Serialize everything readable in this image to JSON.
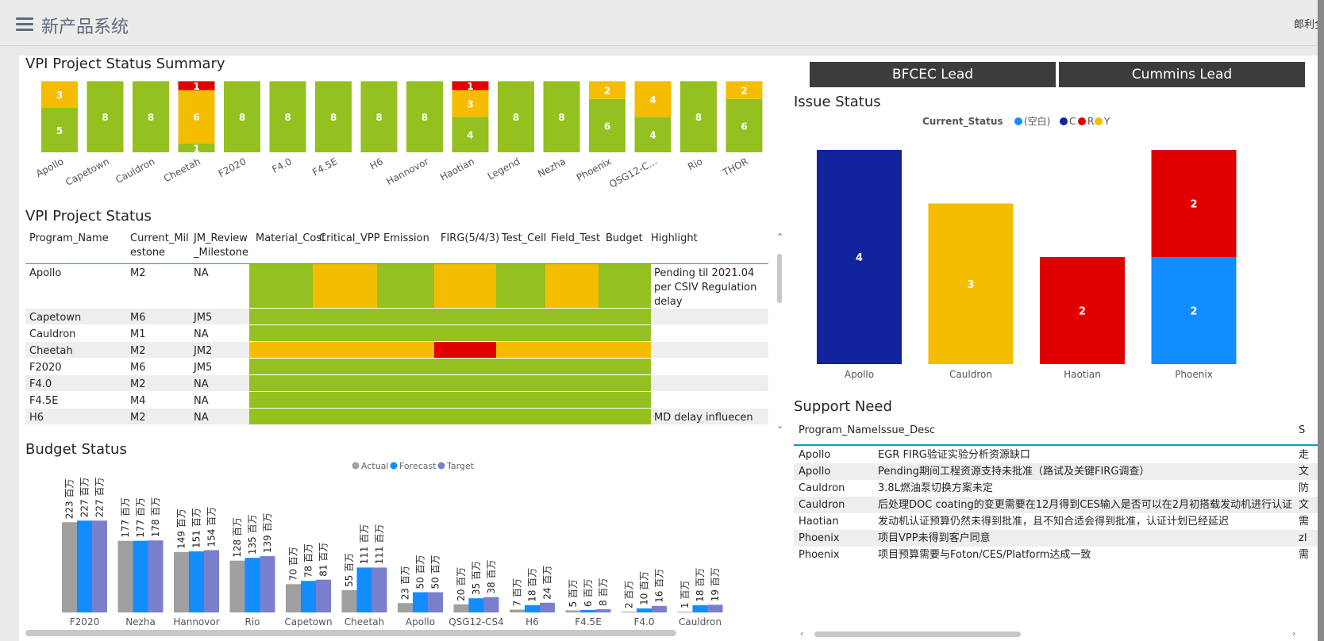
{
  "app": {
    "title": "新产品系统",
    "user": "郎利全"
  },
  "summary": {
    "title": "VPI Project Status Summary",
    "chart_data": {
      "type": "bar",
      "stacked": true,
      "categories": [
        "Apollo",
        "Capetown",
        "Cauldron",
        "Cheetah",
        "F2020",
        "F4.0",
        "F4.5E",
        "H6",
        "Hannovor",
        "Haotian",
        "Legend",
        "Nezha",
        "Phoenix",
        "QSG12-C...",
        "Rio",
        "THOR"
      ],
      "series": [
        {
          "color": "#94c11f",
          "values": [
            5,
            8,
            8,
            1,
            8,
            8,
            8,
            8,
            8,
            4,
            8,
            8,
            6,
            4,
            8,
            6
          ]
        },
        {
          "color": "#f4bd00",
          "values": [
            3,
            0,
            0,
            6,
            0,
            0,
            0,
            0,
            0,
            3,
            0,
            0,
            2,
            4,
            0,
            2
          ]
        },
        {
          "color": "#e00000",
          "values": [
            0,
            0,
            0,
            1,
            0,
            0,
            0,
            0,
            0,
            1,
            0,
            0,
            0,
            0,
            0,
            0
          ]
        }
      ]
    }
  },
  "vpi": {
    "title": "VPI Project Status",
    "headers": [
      "Program_Name",
      "Current_Mil\nestone",
      "JM_Review\n_Milestone",
      "Material_Cost",
      "Critical_VPP",
      "Emission",
      "FIRG(5/4/3)",
      "Test_Cell",
      "Field_Test",
      "Budget",
      "Highlight"
    ],
    "rows": [
      {
        "name": "Apollo",
        "cm": "M2",
        "jm": "NA",
        "st": [
          "G",
          "Y",
          "G",
          "Y",
          "G",
          "Y",
          "G"
        ],
        "hl": "Pending til 2021.04\nper CSIV Regulation\ndelay"
      },
      {
        "name": "Capetown",
        "cm": "M6",
        "jm": "JM5",
        "st": [
          "G",
          "G",
          "G",
          "G",
          "G",
          "G",
          "G"
        ],
        "hl": ""
      },
      {
        "name": "Cauldron",
        "cm": "M1",
        "jm": "NA",
        "st": [
          "G",
          "G",
          "G",
          "G",
          "G",
          "G",
          "G"
        ],
        "hl": ""
      },
      {
        "name": "Cheetah",
        "cm": "M2",
        "jm": "JM2",
        "st": [
          "Y",
          "Y",
          "Y",
          "R",
          "Y",
          "Y",
          "Y"
        ],
        "hl": ""
      },
      {
        "name": "F2020",
        "cm": "M6",
        "jm": "JM5",
        "st": [
          "G",
          "G",
          "G",
          "G",
          "G",
          "G",
          "G"
        ],
        "hl": ""
      },
      {
        "name": "F4.0",
        "cm": "M2",
        "jm": "NA",
        "st": [
          "G",
          "G",
          "G",
          "G",
          "G",
          "G",
          "G"
        ],
        "hl": ""
      },
      {
        "name": "F4.5E",
        "cm": "M4",
        "jm": "NA",
        "st": [
          "G",
          "G",
          "G",
          "G",
          "G",
          "G",
          "G"
        ],
        "hl": ""
      },
      {
        "name": "H6",
        "cm": "M2",
        "jm": "NA",
        "st": [
          "G",
          "G",
          "G",
          "G",
          "G",
          "G",
          "G"
        ],
        "hl": "MD delay influecen"
      }
    ]
  },
  "budget": {
    "title": "Budget Status",
    "chart_data": {
      "type": "bar",
      "unit": "百万",
      "legend": [
        "Actual",
        "Forecast",
        "Target"
      ],
      "colors": [
        "#a0a0a0",
        "#118dff",
        "#7a7fcc"
      ],
      "categories": [
        "F2020",
        "Nezha",
        "Hannovor",
        "Rio",
        "Capetown",
        "Cheetah",
        "Apollo",
        "QSG12-CS4",
        "H6",
        "F4.5E",
        "F4.0",
        "Cauldron"
      ],
      "series": [
        {
          "name": "Actual",
          "values": [
            223,
            177,
            149,
            128,
            70,
            55,
            23,
            20,
            7,
            5,
            2,
            1
          ]
        },
        {
          "name": "Forecast",
          "values": [
            227,
            177,
            151,
            135,
            78,
            111,
            50,
            35,
            18,
            6,
            10,
            18
          ]
        },
        {
          "name": "Target",
          "values": [
            227,
            178,
            154,
            139,
            81,
            111,
            50,
            38,
            24,
            8,
            16,
            19
          ]
        }
      ]
    }
  },
  "buttons": {
    "bfcec": "BFCEC Lead",
    "cummins": "Cummins Lead"
  },
  "issue": {
    "title": "Issue Status",
    "chart_data": {
      "type": "bar",
      "stacked": true,
      "legend_title": "Current_Status",
      "legend": [
        {
          "label": "(空白)",
          "color": "#118dff"
        },
        {
          "label": "C",
          "color": "#12239e"
        },
        {
          "label": "R",
          "color": "#e00000"
        },
        {
          "label": "Y",
          "color": "#f4bd00"
        }
      ],
      "categories": [
        "Apollo",
        "Cauldron",
        "Haotian",
        "Phoenix"
      ],
      "stacks": [
        [
          {
            "status": "C",
            "value": 4
          }
        ],
        [
          {
            "status": "Y",
            "value": 3
          }
        ],
        [
          {
            "status": "R",
            "value": 2
          }
        ],
        [
          {
            "status": "(空白)",
            "value": 2
          },
          {
            "status": "R",
            "value": 2
          }
        ]
      ]
    }
  },
  "support": {
    "title": "Support Need",
    "headers": [
      "Program_Name",
      "Issue_Desc",
      "S"
    ],
    "rows": [
      {
        "name": "Apollo",
        "desc": "EGR FIRG验证实验分析资源缺口",
        "s": "走"
      },
      {
        "name": "Apollo",
        "desc": "Pending期间工程资源支持未批准（路试及关键FIRG调查）",
        "s": "文"
      },
      {
        "name": "Cauldron",
        "desc": "3.8L燃油泵切换方案未定",
        "s": "防"
      },
      {
        "name": "Cauldron",
        "desc": "后处理DOC coating的变更需要在12月得到CES输入是否可以在2月初搭载发动机进行认证",
        "s": "文"
      },
      {
        "name": "Haotian",
        "desc": "发动机认证预算仍然未得到批准，且不知合适会得到批准，认证计划已经延迟",
        "s": "需"
      },
      {
        "name": "Phoenix",
        "desc": "项目VPP未得到客户同意",
        "s": "zl"
      },
      {
        "name": "Phoenix",
        "desc": "项目预算需要与Foton/CES/Platform达成一致",
        "s": "需"
      }
    ]
  }
}
